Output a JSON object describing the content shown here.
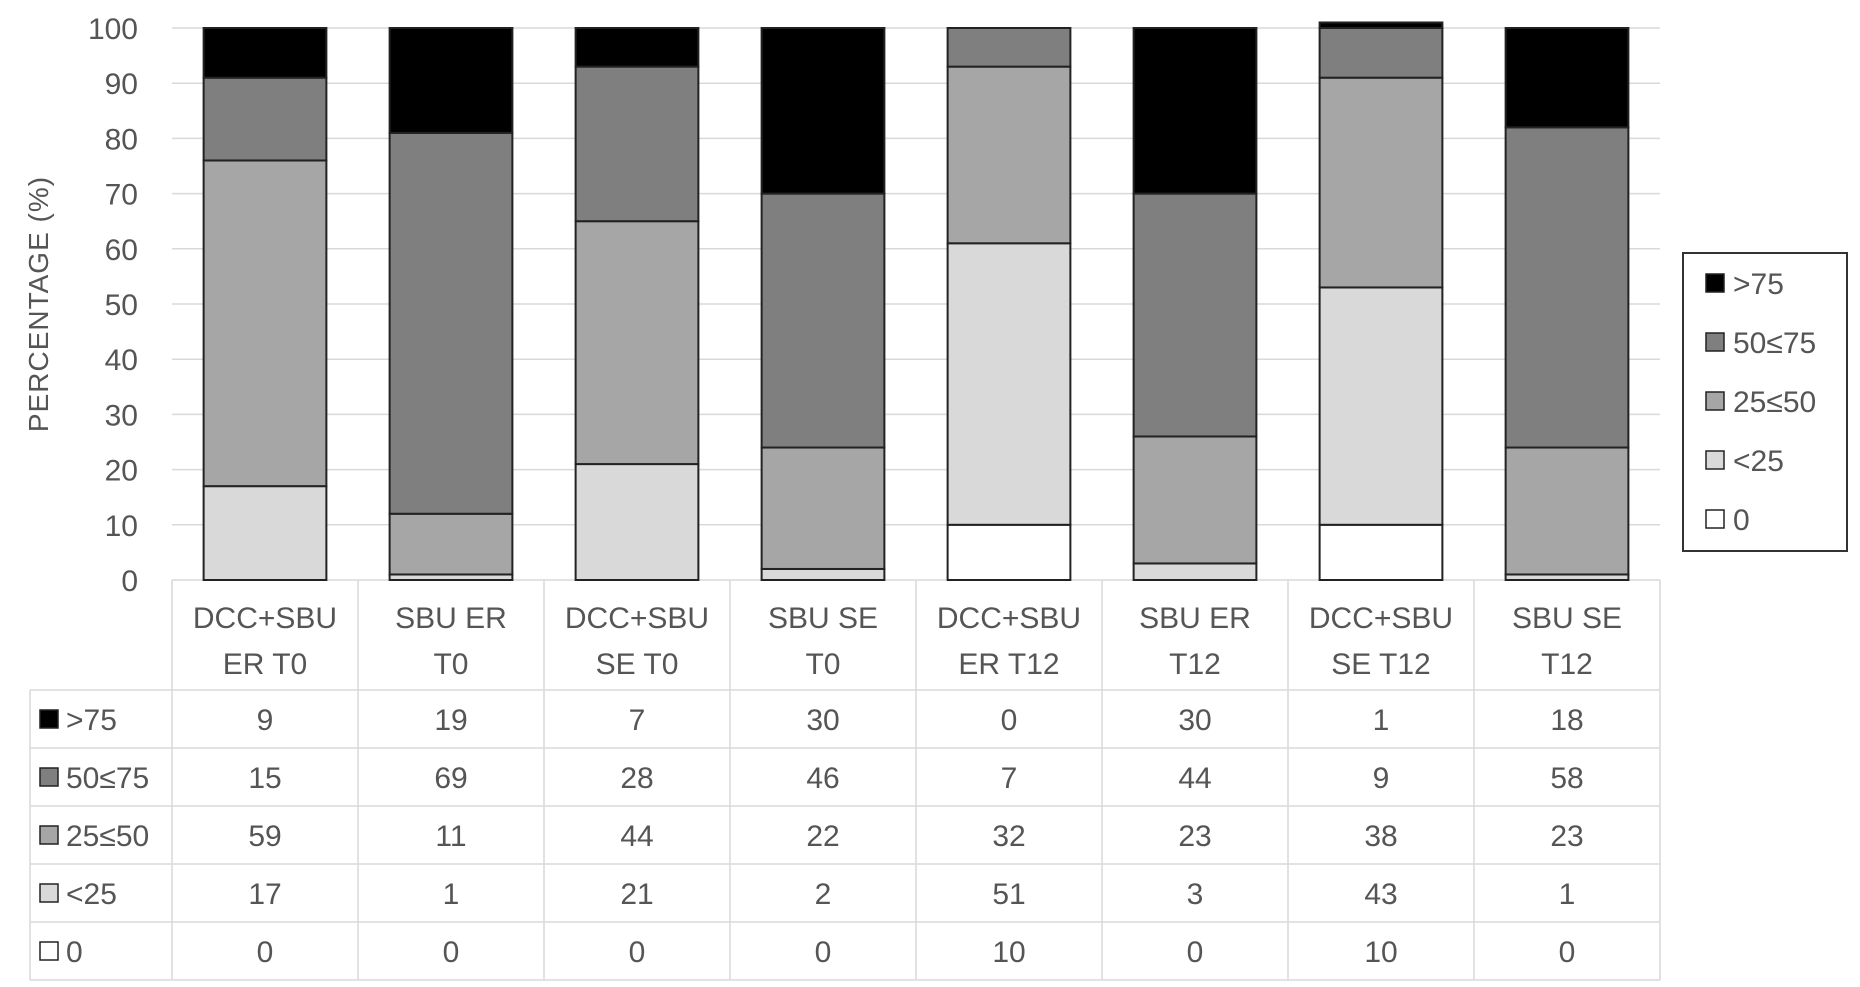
{
  "chart_data": {
    "type": "bar",
    "stacked": true,
    "categories": [
      [
        "DCC+SBU",
        "ER T0"
      ],
      [
        "SBU ER",
        "T0"
      ],
      [
        "DCC+SBU",
        "SE T0"
      ],
      [
        "SBU SE",
        "T0"
      ],
      [
        "DCC+SBU",
        "ER T12"
      ],
      [
        "SBU ER",
        "T12"
      ],
      [
        "DCC+SBU",
        "SE T12"
      ],
      [
        "SBU SE",
        "T12"
      ]
    ],
    "series": [
      {
        "name": "0",
        "color": "#ffffff",
        "values": [
          0,
          0,
          0,
          0,
          10,
          0,
          10,
          0
        ]
      },
      {
        "name": "<25",
        "color": "#d9d9d9",
        "values": [
          17,
          1,
          21,
          2,
          51,
          3,
          43,
          1
        ]
      },
      {
        "name": "25≤50",
        "color": "#a6a6a6",
        "values": [
          59,
          11,
          44,
          22,
          32,
          23,
          38,
          23
        ]
      },
      {
        "name": "50≤75",
        "color": "#7f7f7f",
        "values": [
          15,
          69,
          28,
          46,
          7,
          44,
          9,
          58
        ]
      },
      {
        "name": ">75",
        "color": "#000000",
        "values": [
          9,
          19,
          7,
          30,
          0,
          30,
          1,
          18
        ]
      }
    ],
    "table_row_order": [
      ">75",
      "50≤75",
      "25≤50",
      "<25",
      "0"
    ],
    "legend_order": [
      ">75",
      "50≤75",
      "25≤50",
      "<25",
      "0"
    ],
    "ylabel": "PERCENTAGE (%)",
    "xlabel": "",
    "title": "",
    "ylim": [
      0,
      100
    ],
    "yticks": [
      0,
      10,
      20,
      30,
      40,
      50,
      60,
      70,
      80,
      90,
      100
    ],
    "grid": true,
    "legend_position": "right",
    "data_table": true
  }
}
